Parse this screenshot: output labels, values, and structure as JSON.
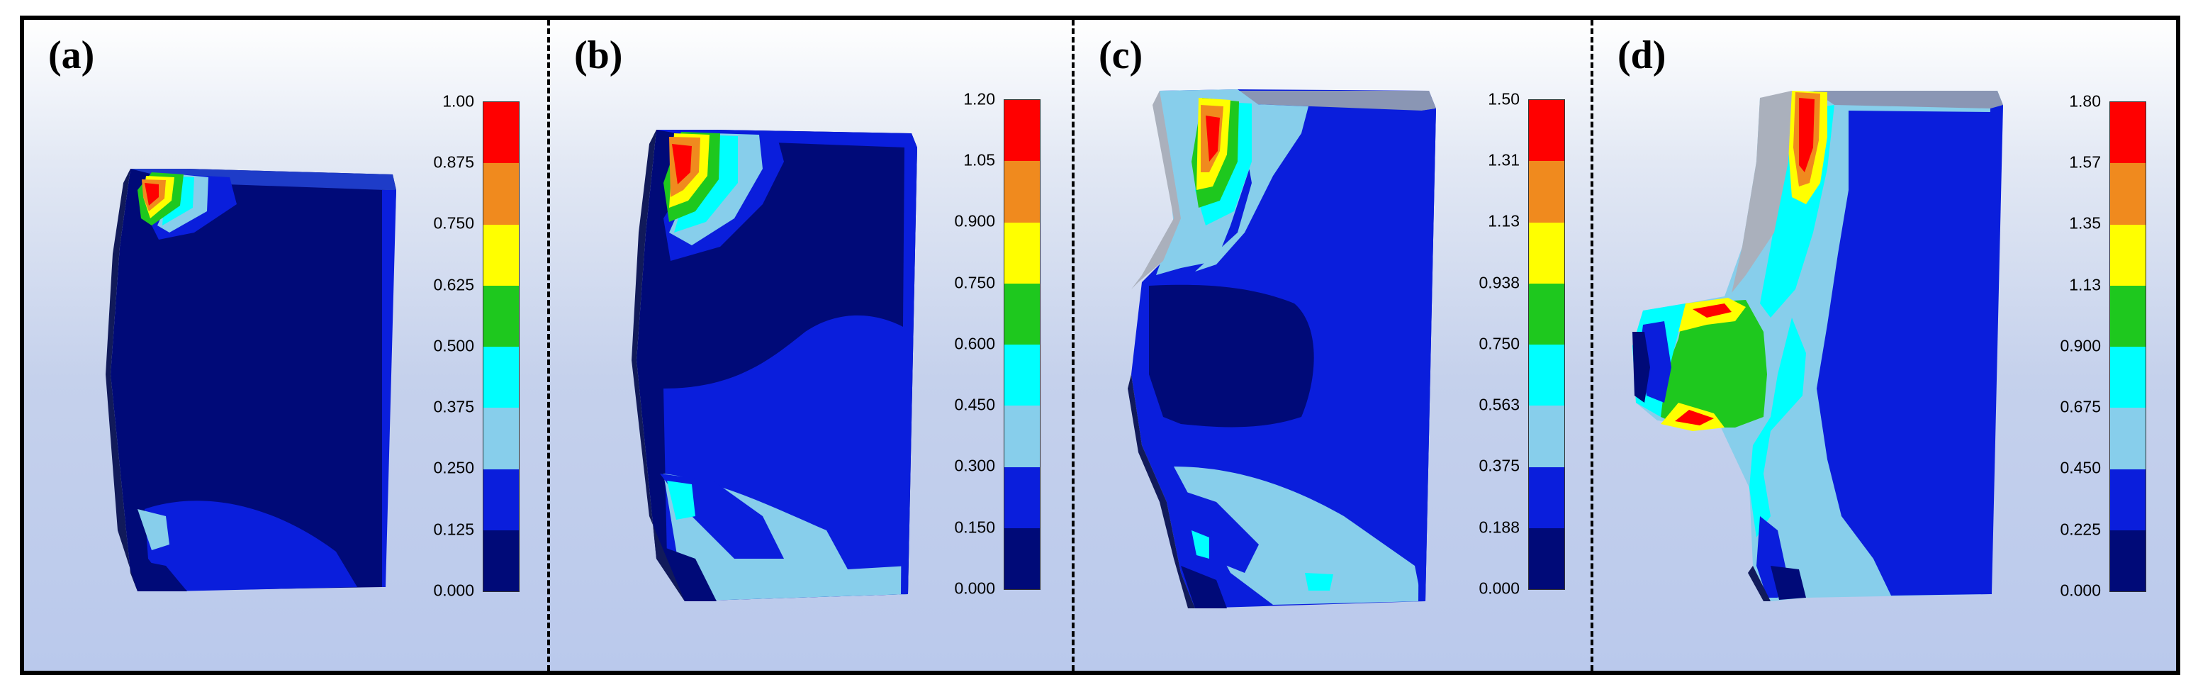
{
  "panels": [
    {
      "label": "(a)",
      "ticks": [
        "1.00",
        "0.875",
        "0.750",
        "0.625",
        "0.500",
        "0.375",
        "0.250",
        "0.125",
        "0.000"
      ]
    },
    {
      "label": "(b)",
      "ticks": [
        "1.20",
        "1.05",
        "0.900",
        "0.750",
        "0.600",
        "0.450",
        "0.300",
        "0.150",
        "0.000"
      ]
    },
    {
      "label": "(c)",
      "ticks": [
        "1.50",
        "1.31",
        "1.13",
        "0.938",
        "0.750",
        "0.563",
        "0.375",
        "0.188",
        "0.000"
      ]
    },
    {
      "label": "(d)",
      "ticks": [
        "1.80",
        "1.57",
        "1.35",
        "1.13",
        "0.900",
        "0.675",
        "0.450",
        "0.225",
        "0.000"
      ]
    }
  ],
  "colors": {
    "scale_top_to_bottom": [
      "#ff0000",
      "#f08a1e",
      "#ffff00",
      "#1ec81e",
      "#00ffff",
      "#87ceeb",
      "#0a1edc",
      "#000a78"
    ],
    "edge": "#9aa0aa"
  }
}
